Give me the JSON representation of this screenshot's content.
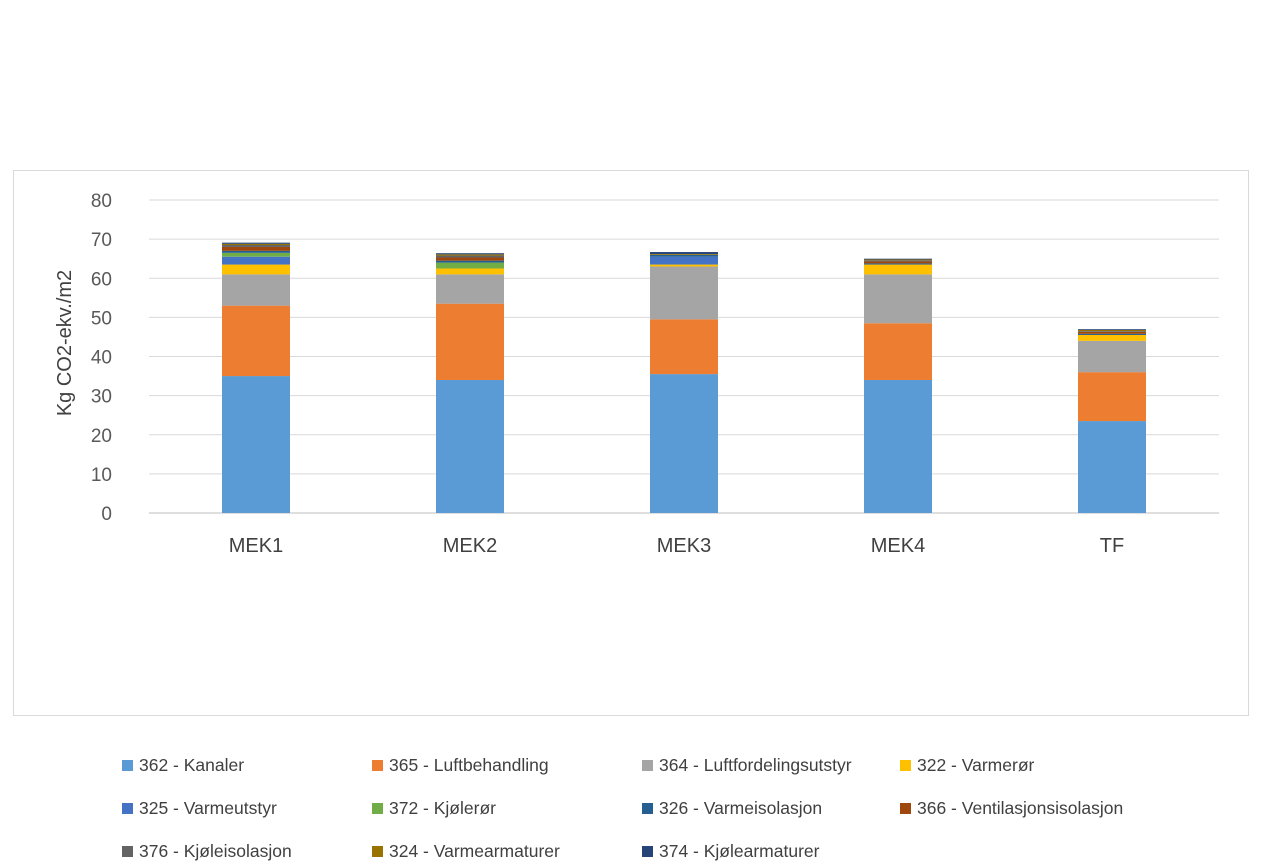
{
  "chart_data": {
    "type": "bar",
    "stacked": true,
    "title": "",
    "xlabel": "",
    "ylabel": "Kg CO2-ekv./m2",
    "ylim": [
      0,
      80
    ],
    "yticks": [
      0,
      10,
      20,
      30,
      40,
      50,
      60,
      70,
      80
    ],
    "grid": true,
    "legend_position": "bottom",
    "categories": [
      "MEK1",
      "MEK2",
      "MEK3",
      "MEK4",
      "TF"
    ],
    "series": [
      {
        "name": "362 - Kanaler",
        "color": "#5b9bd5",
        "values": [
          35.0,
          34.0,
          35.5,
          34.0,
          23.5
        ]
      },
      {
        "name": "365 - Luftbehandling",
        "color": "#ed7d31",
        "values": [
          18.0,
          19.5,
          14.0,
          14.5,
          12.5
        ]
      },
      {
        "name": "364 - Luftfordelingsutstyr",
        "color": "#a5a5a5",
        "values": [
          8.0,
          7.5,
          13.5,
          12.5,
          8.0
        ]
      },
      {
        "name": "322 - Varmerør",
        "color": "#ffc000",
        "values": [
          2.5,
          1.5,
          0.5,
          2.5,
          1.5
        ]
      },
      {
        "name": "325 - Varmeutstyr",
        "color": "#4472c4",
        "values": [
          2.0,
          0.0,
          2.0,
          0.0,
          0.0
        ]
      },
      {
        "name": "372 - Kjølerør",
        "color": "#70ad47",
        "values": [
          1.0,
          1.5,
          0.0,
          0.0,
          0.0
        ]
      },
      {
        "name": "326 - Varmeisolasjon",
        "color": "#255e91",
        "values": [
          0.5,
          0.5,
          0.5,
          0.3,
          0.3
        ]
      },
      {
        "name": "366 - Ventilasjonsisolasjon",
        "color": "#9e480e",
        "values": [
          1.0,
          0.8,
          0.0,
          0.5,
          0.5
        ]
      },
      {
        "name": "376 - Kjøleisolasjon",
        "color": "#636363",
        "values": [
          0.5,
          0.5,
          0.0,
          0.3,
          0.2
        ]
      },
      {
        "name": "324 - Varmearmaturer",
        "color": "#997300",
        "values": [
          0.3,
          0.3,
          0.2,
          0.2,
          0.3
        ]
      },
      {
        "name": "374 - Kjølearmaturer",
        "color": "#264478",
        "values": [
          0.3,
          0.3,
          0.5,
          0.2,
          0.2
        ]
      }
    ]
  }
}
